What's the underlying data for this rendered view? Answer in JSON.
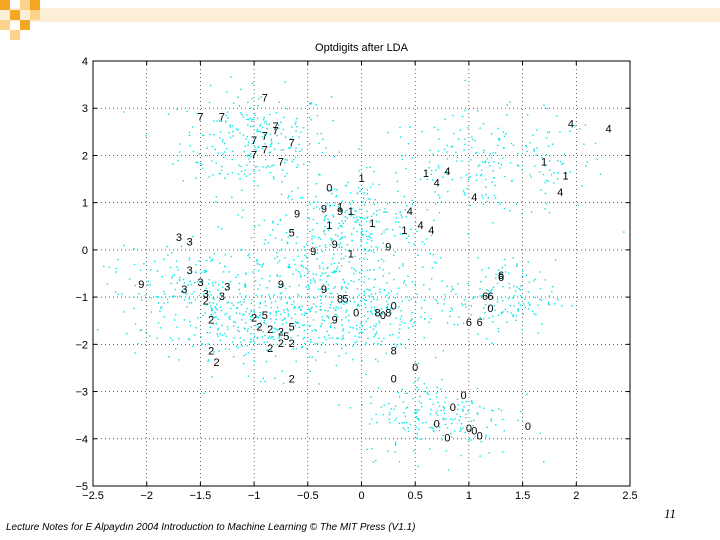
{
  "chart_data": {
    "type": "scatter",
    "title": "Optdigits after LDA",
    "xlabel": "",
    "ylabel": "",
    "xlim": [
      -2.5,
      2.5
    ],
    "ylim": [
      -5,
      4
    ],
    "grid": true,
    "x_ticks": [
      -2.5,
      -2,
      -1.5,
      -1,
      -0.5,
      0,
      0.5,
      1,
      1.5,
      2,
      2.5
    ],
    "y_ticks": [
      -5,
      -4,
      -3,
      -2,
      -1,
      0,
      1,
      2,
      3,
      4
    ],
    "x_tick_labels": [
      "−2.5",
      "−2",
      "−1.5",
      "−1",
      "−0.5",
      "0",
      "0.5",
      "1",
      "1.5",
      "2",
      "2.5"
    ],
    "y_tick_labels": [
      "−5",
      "−4",
      "−3",
      "−2",
      "−1",
      "0",
      "1",
      "2",
      "3",
      "4"
    ],
    "points_color": "#00e5e5",
    "cluster_centers": [
      {
        "label": "7",
        "x": -1.0,
        "y": 2.3,
        "sx": 0.35,
        "sy": 0.55,
        "n": 260
      },
      {
        "label": "4",
        "x": 1.2,
        "y": 1.8,
        "sx": 0.55,
        "sy": 0.55,
        "n": 230
      },
      {
        "label": "1",
        "x": -0.1,
        "y": 0.6,
        "sx": 0.35,
        "sy": 0.45,
        "n": 210
      },
      {
        "label": "9",
        "x": -0.4,
        "y": -0.3,
        "sx": 0.45,
        "sy": 0.55,
        "n": 200
      },
      {
        "label": "3",
        "x": -1.5,
        "y": -0.9,
        "sx": 0.45,
        "sy": 0.45,
        "n": 230
      },
      {
        "label": "2",
        "x": -0.9,
        "y": -1.7,
        "sx": 0.45,
        "sy": 0.45,
        "n": 220
      },
      {
        "label": "8",
        "x": 0.1,
        "y": -1.3,
        "sx": 0.35,
        "sy": 0.45,
        "n": 180
      },
      {
        "label": "6",
        "x": 1.3,
        "y": -1.0,
        "sx": 0.25,
        "sy": 0.4,
        "n": 150
      },
      {
        "label": "0",
        "x": 0.7,
        "y": -3.5,
        "sx": 0.35,
        "sy": 0.45,
        "n": 200
      },
      {
        "label": "5",
        "x": -0.5,
        "y": -1.2,
        "sx": 0.4,
        "sy": 0.5,
        "n": 120
      }
    ],
    "digit_labels": [
      {
        "t": "7",
        "x": -0.9,
        "y": 3.2
      },
      {
        "t": "7",
        "x": -1.5,
        "y": 2.8
      },
      {
        "t": "7",
        "x": -1.3,
        "y": 2.8
      },
      {
        "t": "7",
        "x": -0.8,
        "y": 2.6
      },
      {
        "t": "7",
        "x": -0.9,
        "y": 2.4
      },
      {
        "t": "7",
        "x": -1.0,
        "y": 2.3
      },
      {
        "t": "7",
        "x": -0.9,
        "y": 2.1
      },
      {
        "t": "7",
        "x": -0.65,
        "y": 2.25
      },
      {
        "t": "7",
        "x": -1.0,
        "y": 2.0
      },
      {
        "t": "7",
        "x": -0.75,
        "y": 1.85
      },
      {
        "t": "7",
        "x": -0.8,
        "y": 2.5
      },
      {
        "t": "4",
        "x": 1.95,
        "y": 2.65
      },
      {
        "t": "4",
        "x": 2.3,
        "y": 2.55
      },
      {
        "t": "4",
        "x": 0.8,
        "y": 1.65
      },
      {
        "t": "4",
        "x": 0.7,
        "y": 1.4
      },
      {
        "t": "4",
        "x": 1.05,
        "y": 1.1
      },
      {
        "t": "4",
        "x": 1.85,
        "y": 1.2
      },
      {
        "t": "4",
        "x": 0.45,
        "y": 0.8
      },
      {
        "t": "4",
        "x": 0.55,
        "y": 0.5
      },
      {
        "t": "4",
        "x": 0.65,
        "y": 0.4
      },
      {
        "t": "1",
        "x": 0.0,
        "y": 1.5
      },
      {
        "t": "1",
        "x": 0.6,
        "y": 1.6
      },
      {
        "t": "1",
        "x": 1.7,
        "y": 1.85
      },
      {
        "t": "1",
        "x": 1.9,
        "y": 1.55
      },
      {
        "t": "1",
        "x": -0.2,
        "y": 0.9
      },
      {
        "t": "1",
        "x": -0.1,
        "y": 0.8
      },
      {
        "t": "1",
        "x": 0.1,
        "y": 0.55
      },
      {
        "t": "1",
        "x": 0.4,
        "y": 0.4
      },
      {
        "t": "1",
        "x": -0.1,
        "y": -0.1
      },
      {
        "t": "1",
        "x": -0.3,
        "y": 0.5
      },
      {
        "t": "0",
        "x": -0.3,
        "y": 1.3
      },
      {
        "t": "0",
        "x": 0.3,
        "y": -1.2
      },
      {
        "t": "0",
        "x": 0.2,
        "y": -1.4
      },
      {
        "t": "0",
        "x": -0.05,
        "y": -1.35
      },
      {
        "t": "0",
        "x": 0.5,
        "y": -2.5
      },
      {
        "t": "0",
        "x": 0.3,
        "y": -2.75
      },
      {
        "t": "0",
        "x": 0.95,
        "y": -3.1
      },
      {
        "t": "0",
        "x": 0.85,
        "y": -3.35
      },
      {
        "t": "0",
        "x": 0.7,
        "y": -3.7
      },
      {
        "t": "0",
        "x": 0.8,
        "y": -4.0
      },
      {
        "t": "0",
        "x": 1.0,
        "y": -3.8
      },
      {
        "t": "0",
        "x": 1.1,
        "y": -3.95
      },
      {
        "t": "0",
        "x": 1.55,
        "y": -3.75
      },
      {
        "t": "0",
        "x": 1.05,
        "y": -3.85
      },
      {
        "t": "0",
        "x": 1.2,
        "y": -1.25
      },
      {
        "t": "9",
        "x": -0.6,
        "y": 0.75
      },
      {
        "t": "9",
        "x": -0.35,
        "y": 0.85
      },
      {
        "t": "9",
        "x": -0.2,
        "y": 0.8
      },
      {
        "t": "9",
        "x": -0.45,
        "y": -0.05
      },
      {
        "t": "9",
        "x": -0.25,
        "y": 0.1
      },
      {
        "t": "9",
        "x": -0.75,
        "y": -0.75
      },
      {
        "t": "9",
        "x": -0.35,
        "y": -0.85
      },
      {
        "t": "9",
        "x": 0.25,
        "y": 0.05
      },
      {
        "t": "9",
        "x": -2.05,
        "y": -0.75
      },
      {
        "t": "9",
        "x": -0.25,
        "y": -1.5
      },
      {
        "t": "3",
        "x": -1.7,
        "y": 0.25
      },
      {
        "t": "3",
        "x": -1.6,
        "y": 0.15
      },
      {
        "t": "3",
        "x": -1.6,
        "y": -0.45
      },
      {
        "t": "3",
        "x": -1.5,
        "y": -0.7
      },
      {
        "t": "3",
        "x": -1.65,
        "y": -0.85
      },
      {
        "t": "3",
        "x": -1.45,
        "y": -0.95
      },
      {
        "t": "3",
        "x": -1.25,
        "y": -0.8
      },
      {
        "t": "3",
        "x": -1.3,
        "y": -1.0
      },
      {
        "t": "2",
        "x": -1.45,
        "y": -1.1
      },
      {
        "t": "2",
        "x": -1.4,
        "y": -1.5
      },
      {
        "t": "2",
        "x": -1.0,
        "y": -1.45
      },
      {
        "t": "2",
        "x": -0.95,
        "y": -1.65
      },
      {
        "t": "2",
        "x": -0.85,
        "y": -1.7
      },
      {
        "t": "2",
        "x": -0.75,
        "y": -1.75
      },
      {
        "t": "2",
        "x": -0.85,
        "y": -2.1
      },
      {
        "t": "2",
        "x": -0.75,
        "y": -2.0
      },
      {
        "t": "2",
        "x": -1.4,
        "y": -2.15
      },
      {
        "t": "2",
        "x": -1.35,
        "y": -2.4
      },
      {
        "t": "2",
        "x": -0.65,
        "y": -2.0
      },
      {
        "t": "2",
        "x": -0.65,
        "y": -2.75
      },
      {
        "t": "5",
        "x": -0.65,
        "y": 0.35
      },
      {
        "t": "5",
        "x": -0.9,
        "y": -1.4
      },
      {
        "t": "5",
        "x": -0.65,
        "y": -1.65
      },
      {
        "t": "5",
        "x": -0.7,
        "y": -1.85
      },
      {
        "t": "5",
        "x": -0.15,
        "y": -1.05
      },
      {
        "t": "6",
        "x": 1.3,
        "y": -0.6
      },
      {
        "t": "6",
        "x": 1.2,
        "y": -1.0
      },
      {
        "t": "6",
        "x": 1.15,
        "y": -1.0
      },
      {
        "t": "6",
        "x": 1.0,
        "y": -1.55
      },
      {
        "t": "6",
        "x": 1.1,
        "y": -1.55
      },
      {
        "t": "6",
        "x": 1.3,
        "y": -0.55
      },
      {
        "t": "8",
        "x": 0.15,
        "y": -1.35
      },
      {
        "t": "8",
        "x": 0.25,
        "y": -1.35
      },
      {
        "t": "8",
        "x": 0.3,
        "y": -2.15
      },
      {
        "t": "8",
        "x": -0.2,
        "y": -1.05
      }
    ]
  },
  "footer": {
    "note": "Lecture Notes for E Alpaydın 2004 Introduction to Machine Learning © The MIT Press (V1.1)",
    "page": "11"
  },
  "decor": {
    "accent": "#f5a623",
    "accent_light": "#fbd38d"
  }
}
